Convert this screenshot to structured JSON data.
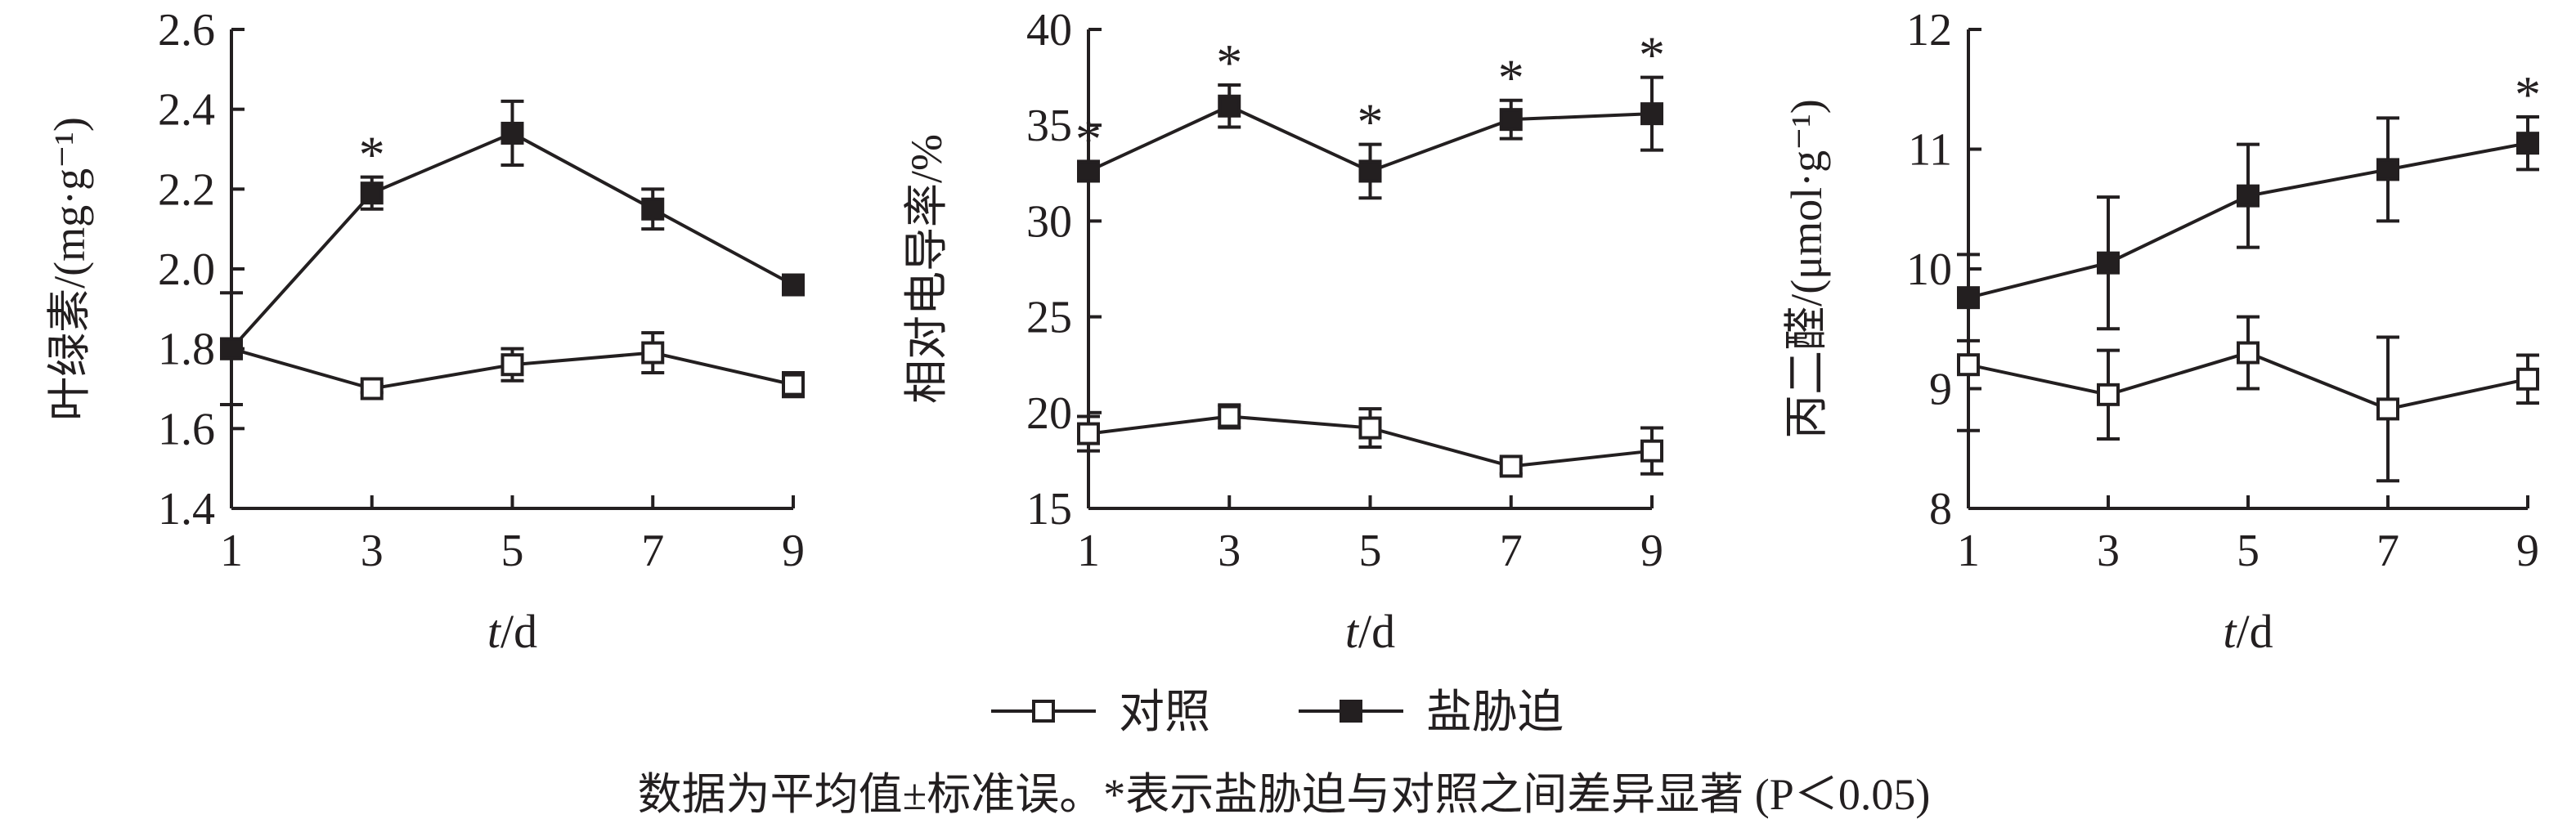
{
  "legend": {
    "control_label": "对照",
    "salt_label": "盐胁迫"
  },
  "caption": "数据为平均值±标准误。*表示盐胁迫与对照之间差异显著 (P＜0.05)",
  "colors": {
    "ink": "#231f20",
    "control_fill": "#ffffff",
    "salt_fill": "#231f20"
  },
  "chart_data": [
    {
      "type": "line",
      "ylabel": "叶绿素/(mg·g⁻¹)",
      "xlabel": "t/d",
      "x": [
        1,
        3,
        5,
        7,
        9
      ],
      "ylim": [
        1.4,
        2.6
      ],
      "yticks": [
        "1.4",
        "1.6",
        "1.8",
        "2.0",
        "2.2",
        "2.4",
        "2.6"
      ],
      "xticks": [
        "1",
        "3",
        "5",
        "7",
        "9"
      ],
      "significance": [
        false,
        true,
        false,
        false,
        false
      ],
      "series": [
        {
          "name": "对照",
          "values": [
            1.8,
            1.7,
            1.76,
            1.79,
            1.71
          ],
          "errors": [
            0.14,
            0.01,
            0.04,
            0.05,
            0.03
          ]
        },
        {
          "name": "盐胁迫",
          "values": [
            1.8,
            2.19,
            2.34,
            2.15,
            1.96
          ],
          "errors": [
            0.02,
            0.04,
            0.08,
            0.05,
            0.02
          ]
        }
      ]
    },
    {
      "type": "line",
      "ylabel": "相对电导率/%",
      "xlabel": "t/d",
      "x": [
        1,
        3,
        5,
        7,
        9
      ],
      "ylim": [
        15,
        40
      ],
      "yticks": [
        "15",
        "20",
        "25",
        "30",
        "35",
        "40"
      ],
      "xticks": [
        "1",
        "3",
        "5",
        "7",
        "9"
      ],
      "significance": [
        true,
        true,
        true,
        true,
        true
      ],
      "series": [
        {
          "name": "对照",
          "values": [
            18.9,
            19.8,
            19.2,
            17.2,
            18.0
          ],
          "errors": [
            0.9,
            0.6,
            1.0,
            0.4,
            1.2
          ]
        },
        {
          "name": "盐胁迫",
          "values": [
            32.6,
            36.0,
            32.6,
            35.3,
            35.6
          ],
          "errors": [
            0.5,
            1.1,
            1.4,
            1.0,
            1.9
          ]
        }
      ]
    },
    {
      "type": "line",
      "ylabel": "丙二醛/(μmol·g⁻¹)",
      "xlabel": "t/d",
      "x": [
        1,
        3,
        5,
        7,
        9
      ],
      "ylim": [
        8,
        12
      ],
      "yticks": [
        "8",
        "9",
        "10",
        "11",
        "12"
      ],
      "xticks": [
        "1",
        "3",
        "5",
        "7",
        "9"
      ],
      "significance": [
        false,
        false,
        false,
        false,
        true
      ],
      "series": [
        {
          "name": "对照",
          "values": [
            9.2,
            8.95,
            9.3,
            8.83,
            9.08
          ],
          "errors": [
            0.55,
            0.37,
            0.3,
            0.6,
            0.2
          ]
        },
        {
          "name": "盐胁迫",
          "values": [
            9.76,
            10.05,
            10.61,
            10.83,
            11.05
          ],
          "errors": [
            0.36,
            0.55,
            0.43,
            0.43,
            0.22
          ]
        }
      ]
    }
  ]
}
